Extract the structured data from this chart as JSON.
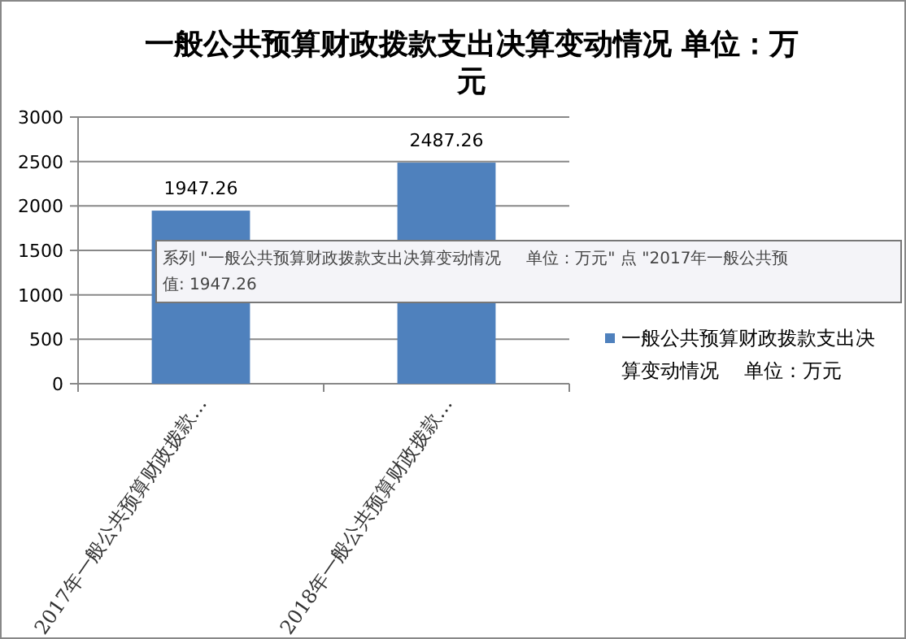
{
  "chart_data": {
    "type": "bar",
    "title": "一般公共预算财政拨款支出决算变动情况  单位：万元",
    "categories": [
      "2017年一般公共预算财政拨款…",
      "2018年一般公共预算财政拨款…"
    ],
    "series": [
      {
        "name": "一般公共预算财政拨款支出决算变动情况    单位：万元",
        "color": "#4f81bd",
        "values": [
          1947.26,
          2487.26
        ]
      }
    ],
    "ylim": [
      0,
      3000
    ],
    "yticks": [
      0,
      500,
      1000,
      1500,
      2000,
      2500,
      3000
    ],
    "grid": "y",
    "legend": "right",
    "data_labels": true,
    "annotations": [
      "系列 \"一般公共预算财政拨款支出决算变动情况     单位：万元\" 点 \"2017年一般公共预",
      "值: 1947.26"
    ]
  }
}
